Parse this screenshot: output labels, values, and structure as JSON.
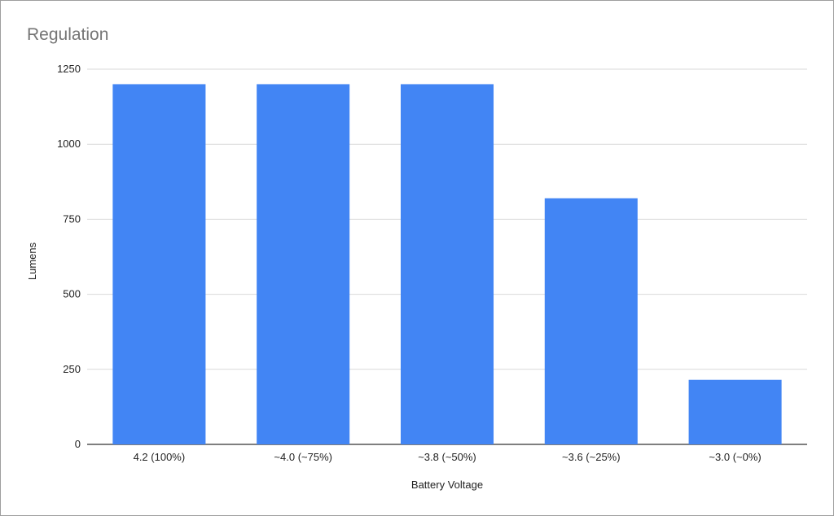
{
  "chart_data": {
    "type": "bar",
    "title": "Regulation",
    "xlabel": "Battery Voltage",
    "ylabel": "Lumens",
    "categories": [
      "4.2 (100%)",
      "~4.0 (~75%)",
      "~3.8 (~50%)",
      "~3.6 (~25%)",
      "~3.0 (~0%)"
    ],
    "values": [
      1200,
      1200,
      1200,
      820,
      215
    ],
    "ylim": [
      0,
      1250
    ],
    "yticks": [
      "0",
      "250",
      "500",
      "750",
      "1000",
      "1250"
    ],
    "grid": true,
    "colors": {
      "bar": "#4285f4",
      "grid": "#d9d9d9",
      "axis": "#333333"
    }
  }
}
